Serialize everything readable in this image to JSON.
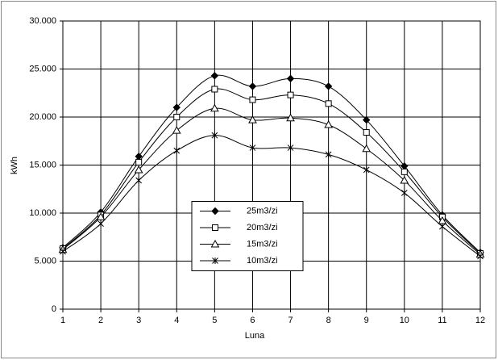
{
  "chart_data": {
    "type": "line",
    "x_label": "Luna",
    "y_label": "kWh",
    "x": [
      1,
      2,
      3,
      4,
      5,
      6,
      7,
      8,
      9,
      10,
      11,
      12
    ],
    "series": [
      {
        "name": "25m3/zi",
        "color": "#000000",
        "marker": "diamond",
        "values": [
          6400,
          10100,
          15900,
          21000,
          24300,
          23200,
          24000,
          23200,
          19700,
          14900,
          9800,
          5900
        ]
      },
      {
        "name": "20m3/zi",
        "color": "#000000",
        "marker": "square",
        "values": [
          6300,
          9800,
          15300,
          20000,
          22900,
          21800,
          22300,
          21400,
          18400,
          14300,
          9600,
          5800
        ]
      },
      {
        "name": "15m3/zi",
        "color": "#000000",
        "marker": "triangle",
        "values": [
          6200,
          9600,
          14500,
          18600,
          20900,
          19700,
          19900,
          19200,
          16700,
          13400,
          9200,
          5700
        ]
      },
      {
        "name": "10m3/zi",
        "color": "#000000",
        "marker": "star",
        "values": [
          6000,
          8900,
          13400,
          16500,
          18100,
          16800,
          16800,
          16100,
          14500,
          12100,
          8600,
          5500
        ]
      }
    ],
    "xlim": [
      1,
      12
    ],
    "xticks": [
      1,
      2,
      3,
      4,
      5,
      6,
      7,
      8,
      9,
      10,
      11,
      12
    ],
    "ylim": [
      0,
      30000
    ],
    "yticks": [
      0,
      {
        "value": 5000,
        "label": "5.000"
      },
      {
        "value": 10000,
        "label": "10.000"
      },
      {
        "value": 15000,
        "label": "15.000"
      },
      {
        "value": 20000,
        "label": "20.000"
      },
      {
        "value": 25000,
        "label": "25.000"
      },
      {
        "value": 30000,
        "label": "30.000"
      }
    ],
    "grid": true,
    "smooth": true,
    "legend": "center"
  }
}
